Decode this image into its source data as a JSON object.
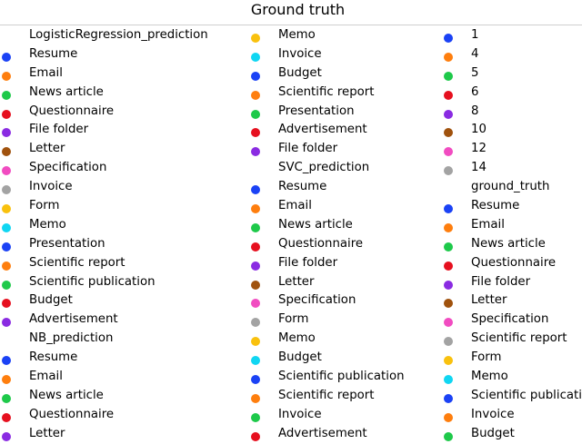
{
  "chart_data": {
    "type": "scatter",
    "title": "Ground truth",
    "xlabel": "",
    "ylabel": "",
    "legend": "top",
    "legend_columns": [
      [
        {
          "header": "LogisticRegression_prediction"
        },
        {
          "label": "Resume",
          "color": "#1b42f5"
        },
        {
          "label": "Email",
          "color": "#fe7e0e"
        },
        {
          "label": "News article",
          "color": "#1ec94a"
        },
        {
          "label": "Questionnaire",
          "color": "#e6101f"
        },
        {
          "label": "File folder",
          "color": "#8a2be2"
        },
        {
          "label": "Letter",
          "color": "#a0520d"
        },
        {
          "label": "Specification",
          "color": "#f14cc1"
        },
        {
          "label": "Invoice",
          "color": "#a3a3a3"
        },
        {
          "label": "Form",
          "color": "#f9c10e"
        },
        {
          "label": "Memo",
          "color": "#10d6f2"
        },
        {
          "label": "Presentation",
          "color": "#1b42f5"
        },
        {
          "label": "Scientific report",
          "color": "#fe7e0e"
        },
        {
          "label": "Scientific publication",
          "color": "#1ec94a"
        },
        {
          "label": "Budget",
          "color": "#e6101f"
        },
        {
          "label": "Advertisement",
          "color": "#8a2be2"
        },
        {
          "header": "NB_prediction"
        },
        {
          "label": "Resume",
          "color": "#1b42f5"
        },
        {
          "label": "Email",
          "color": "#fe7e0e"
        },
        {
          "label": "News article",
          "color": "#1ec94a"
        },
        {
          "label": "Questionnaire",
          "color": "#e6101f"
        },
        {
          "label": "Letter",
          "color": "#8a2be2"
        }
      ],
      [
        {
          "label": "Memo",
          "color": "#f9c10e"
        },
        {
          "label": "Invoice",
          "color": "#10d6f2"
        },
        {
          "label": "Budget",
          "color": "#1b42f5"
        },
        {
          "label": "Scientific report",
          "color": "#fe7e0e"
        },
        {
          "label": "Presentation",
          "color": "#1ec94a"
        },
        {
          "label": "Advertisement",
          "color": "#e6101f"
        },
        {
          "label": "File folder",
          "color": "#8a2be2"
        },
        {
          "header": "SVC_prediction"
        },
        {
          "label": "Resume",
          "color": "#1b42f5"
        },
        {
          "label": "Email",
          "color": "#fe7e0e"
        },
        {
          "label": "News article",
          "color": "#1ec94a"
        },
        {
          "label": "Questionnaire",
          "color": "#e6101f"
        },
        {
          "label": "File folder",
          "color": "#8a2be2"
        },
        {
          "label": "Letter",
          "color": "#a0520d"
        },
        {
          "label": "Specification",
          "color": "#f14cc1"
        },
        {
          "label": "Form",
          "color": "#a3a3a3"
        },
        {
          "label": "Memo",
          "color": "#f9c10e"
        },
        {
          "label": "Budget",
          "color": "#10d6f2"
        },
        {
          "label": "Scientific publication",
          "color": "#1b42f5"
        },
        {
          "label": "Scientific report",
          "color": "#fe7e0e"
        },
        {
          "label": "Invoice",
          "color": "#1ec94a"
        },
        {
          "label": "Advertisement",
          "color": "#e6101f"
        }
      ],
      [
        {
          "label": "1",
          "color": "#1b42f5"
        },
        {
          "label": "4",
          "color": "#fe7e0e"
        },
        {
          "label": "5",
          "color": "#1ec94a"
        },
        {
          "label": "6",
          "color": "#e6101f"
        },
        {
          "label": "8",
          "color": "#8a2be2"
        },
        {
          "label": "10",
          "color": "#a0520d"
        },
        {
          "label": "12",
          "color": "#f14cc1"
        },
        {
          "label": "14",
          "color": "#a3a3a3"
        },
        {
          "header": "ground_truth"
        },
        {
          "label": "Resume",
          "color": "#1b42f5"
        },
        {
          "label": "Email",
          "color": "#fe7e0e"
        },
        {
          "label": "News article",
          "color": "#1ec94a"
        },
        {
          "label": "Questionnaire",
          "color": "#e6101f"
        },
        {
          "label": "File folder",
          "color": "#8a2be2"
        },
        {
          "label": "Letter",
          "color": "#a0520d"
        },
        {
          "label": "Specification",
          "color": "#f14cc1"
        },
        {
          "label": "Scientific report",
          "color": "#a3a3a3"
        },
        {
          "label": "Form",
          "color": "#f9c10e"
        },
        {
          "label": "Memo",
          "color": "#10d6f2"
        },
        {
          "label": "Scientific publication",
          "color": "#1b42f5"
        },
        {
          "label": "Invoice",
          "color": "#fe7e0e"
        },
        {
          "label": "Budget",
          "color": "#1ec94a"
        }
      ]
    ]
  }
}
